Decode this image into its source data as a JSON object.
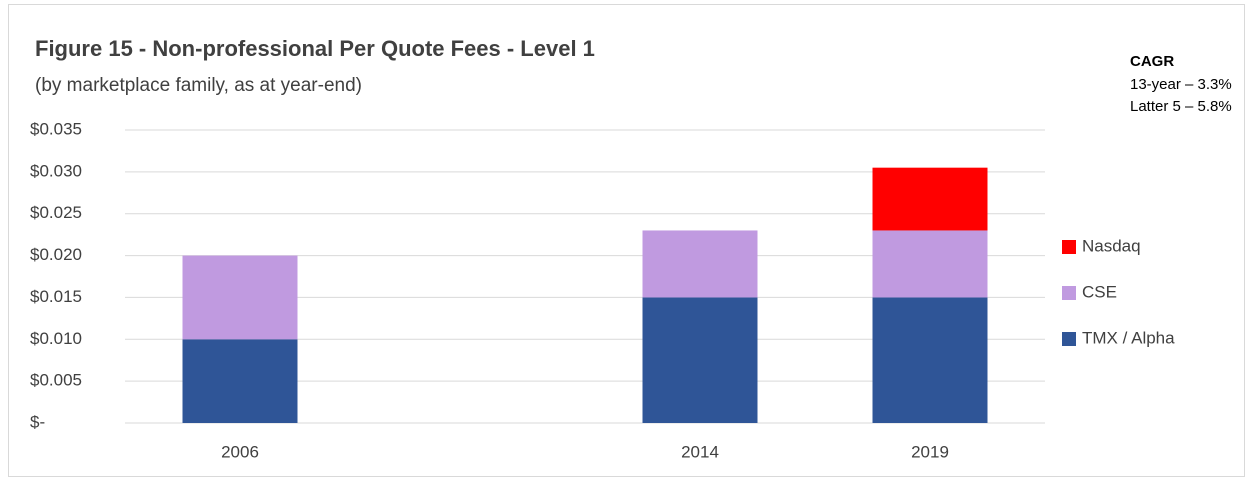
{
  "chart_data": {
    "type": "stacked_bar",
    "title": "Figure 15 - Non-professional Per Quote Fees - Level 1",
    "subtitle": "(by marketplace family, as at year-end)",
    "annotations": [
      "CAGR",
      "13-year – 3.3%",
      "Latter 5 – 5.8%"
    ],
    "categories": [
      "2006",
      null,
      "2014",
      "2019"
    ],
    "series": [
      {
        "name": "TMX / Alpha",
        "color": "#2f5597",
        "values": [
          0.01,
          null,
          0.015,
          0.015
        ]
      },
      {
        "name": "CSE",
        "color": "#c09ae0",
        "values": [
          0.01,
          null,
          0.008,
          0.008
        ]
      },
      {
        "name": "Nasdaq",
        "color": "#ff0000",
        "values": [
          null,
          null,
          null,
          0.0075
        ]
      }
    ],
    "ylim": [
      0,
      0.035
    ],
    "yticks": [
      {
        "value": 0,
        "label": "$-"
      },
      {
        "value": 0.005,
        "label": "$0.005"
      },
      {
        "value": 0.01,
        "label": "$0.010"
      },
      {
        "value": 0.015,
        "label": "$0.015"
      },
      {
        "value": 0.02,
        "label": "$0.020"
      },
      {
        "value": 0.025,
        "label": "$0.025"
      },
      {
        "value": 0.03,
        "label": "$0.030"
      },
      {
        "value": 0.035,
        "label": "$0.035"
      }
    ],
    "grid": true,
    "legend": "right"
  }
}
